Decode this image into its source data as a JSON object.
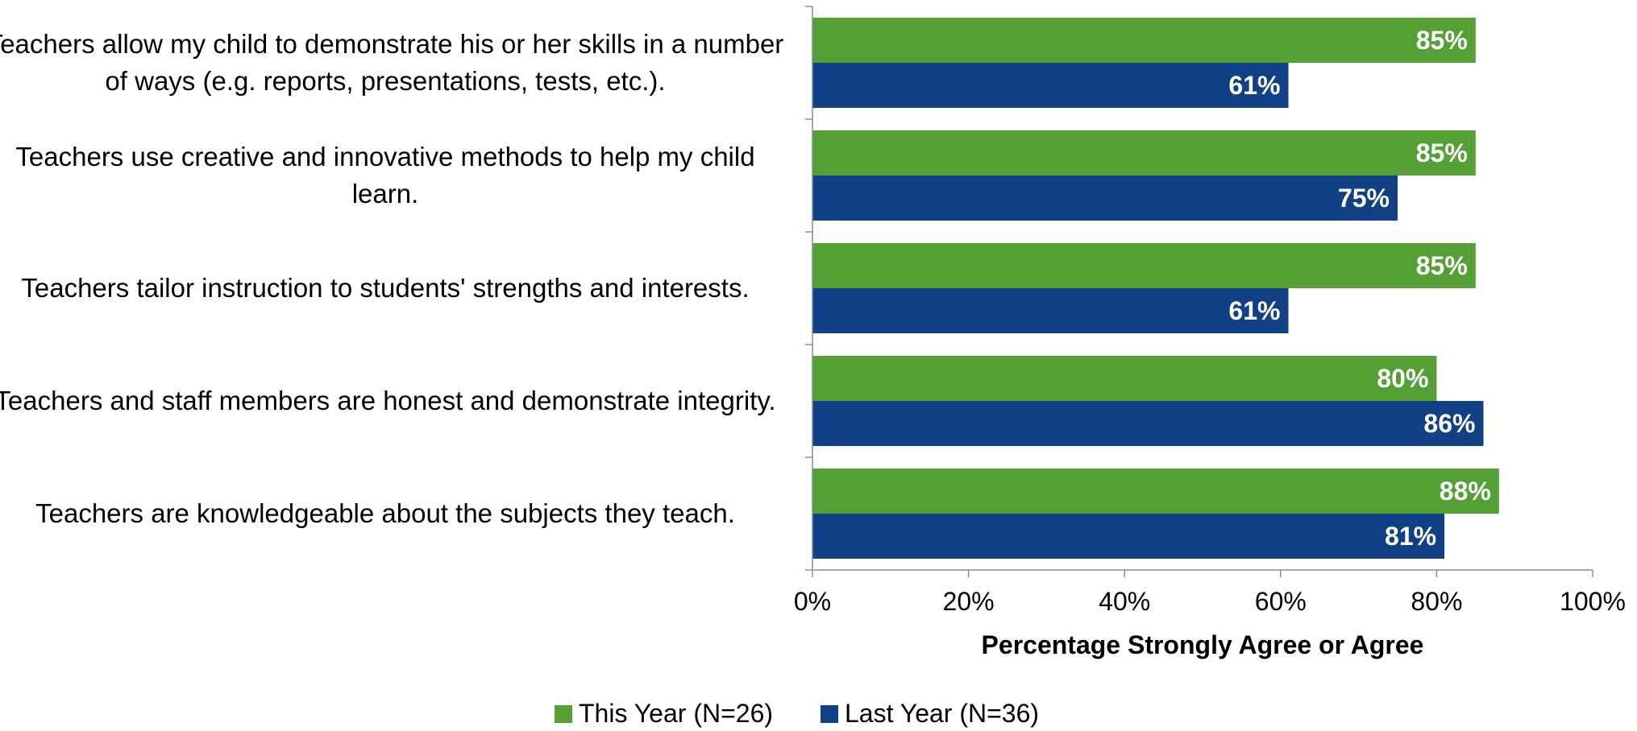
{
  "chart_data": {
    "type": "bar",
    "orientation": "horizontal",
    "categories": [
      "Teachers allow my child to demonstrate his or her skills in a number of ways (e.g. reports, presentations, tests, etc.).",
      "Teachers use creative and innovative methods to help my child learn.",
      "Teachers tailor instruction to students' strengths and interests.",
      "Teachers and staff members are honest and demonstrate integrity.",
      "Teachers are knowledgeable about the subjects they teach."
    ],
    "series": [
      {
        "name": "This Year (N=26)",
        "color": "#55a035",
        "values": [
          85,
          85,
          85,
          80,
          88
        ],
        "labels": [
          "85%",
          "85%",
          "85%",
          "80%",
          "88%"
        ]
      },
      {
        "name": "Last Year (N=36)",
        "color": "#124087",
        "values": [
          61,
          75,
          61,
          86,
          81
        ],
        "labels": [
          "61%",
          "75%",
          "61%",
          "86%",
          "81%"
        ]
      }
    ],
    "xlabel": "Percentage Strongly Agree or Agree",
    "xlim": [
      0,
      100
    ],
    "xticks": [
      "0%",
      "20%",
      "40%",
      "60%",
      "80%",
      "100%"
    ],
    "grid": false,
    "legend_position": "bottom"
  }
}
